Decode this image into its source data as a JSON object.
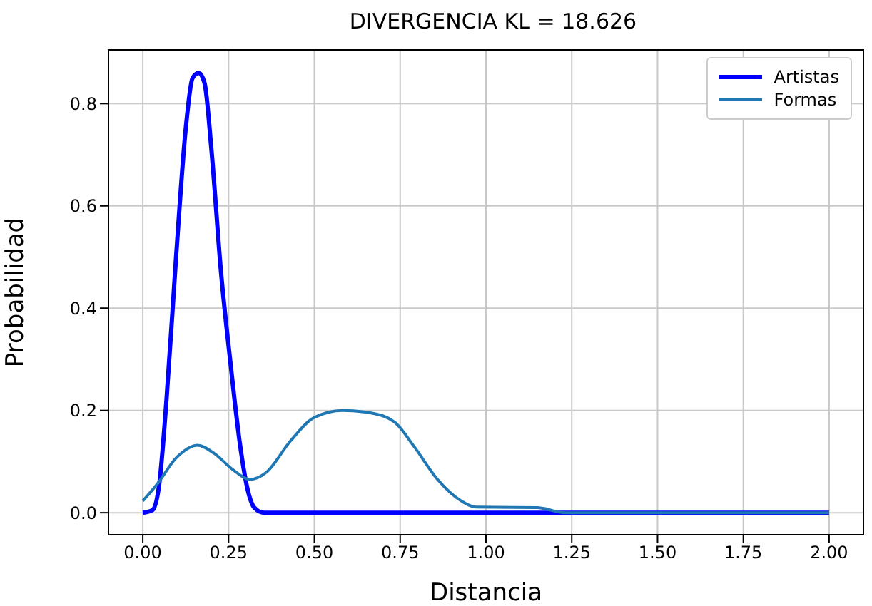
{
  "chart_data": {
    "type": "line",
    "title": "DIVERGENCIA KL = 18.626",
    "xlabel": "Distancia",
    "ylabel": "Probabilidad",
    "xlim": [
      -0.1,
      2.1
    ],
    "ylim": [
      -0.043,
      0.905
    ],
    "xticks": [
      {
        "value": 0,
        "label": "0.00"
      },
      {
        "value": 0.25,
        "label": "0.25"
      },
      {
        "value": 0.5,
        "label": "0.50"
      },
      {
        "value": 0.75,
        "label": "0.75"
      },
      {
        "value": 1,
        "label": "1.00"
      },
      {
        "value": 1.25,
        "label": "1.25"
      },
      {
        "value": 1.5,
        "label": "1.50"
      },
      {
        "value": 1.75,
        "label": "1.75"
      },
      {
        "value": 2,
        "label": "2.00"
      }
    ],
    "yticks": [
      {
        "value": 0,
        "label": "0.0"
      },
      {
        "value": 0.2,
        "label": "0.2"
      },
      {
        "value": 0.4,
        "label": "0.4"
      },
      {
        "value": 0.6,
        "label": "0.6"
      },
      {
        "value": 0.8,
        "label": "0.8"
      }
    ],
    "grid": true,
    "legend": "top right",
    "marker": "none",
    "line_style": "solid",
    "series": [
      {
        "name": "Artistas",
        "color": "#0000ff",
        "x": [
          0,
          0.028,
          0.048,
          0.069,
          0.097,
          0.125,
          0.145,
          0.163,
          0.18,
          0.2,
          0.228,
          0.256,
          0.284,
          0.305,
          0.325,
          0.353,
          1,
          2
        ],
        "values": [
          0,
          0.005,
          0.056,
          0.22,
          0.5,
          0.75,
          0.85,
          0.86,
          0.84,
          0.71,
          0.47,
          0.29,
          0.13,
          0.047,
          0.01,
          0,
          0,
          0
        ]
      },
      {
        "name": "Formas",
        "color": "#1f77b4",
        "x": [
          0,
          0.042,
          0.097,
          0.159,
          0.208,
          0.263,
          0.312,
          0.36,
          0.43,
          0.499,
          0.582,
          0.665,
          0.734,
          0.79,
          0.859,
          0.928,
          0.97,
          1.15,
          1.23,
          2
        ],
        "values": [
          0.023,
          0.056,
          0.107,
          0.132,
          0.116,
          0.084,
          0.065,
          0.079,
          0.14,
          0.186,
          0.2,
          0.195,
          0.177,
          0.13,
          0.065,
          0.023,
          0.011,
          0.01,
          0,
          0
        ]
      }
    ]
  }
}
